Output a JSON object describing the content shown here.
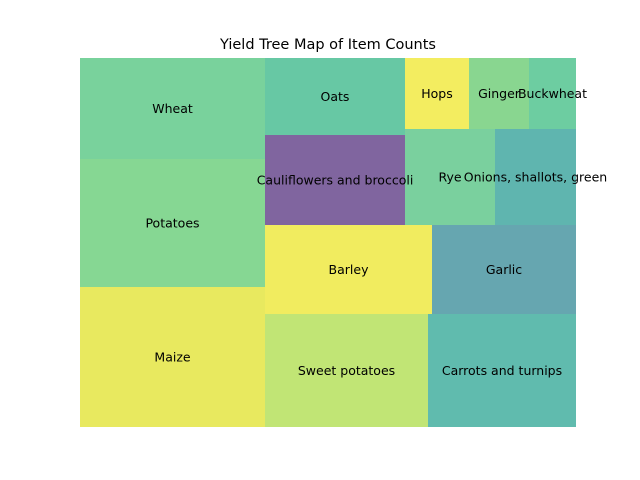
{
  "chart_data": {
    "type": "treemap",
    "title": "Yield Tree Map of Item Counts",
    "items": [
      {
        "name": "Maize",
        "value": 47,
        "color": "#e8e95f"
      },
      {
        "name": "Potatoes",
        "value": 43,
        "color": "#86d793"
      },
      {
        "name": "Wheat",
        "value": 33,
        "color": "#79d29c"
      },
      {
        "name": "Sweet potatoes",
        "value": 32,
        "color": "#c1e575"
      },
      {
        "name": "Barley",
        "value": 30,
        "color": "#f1ec5f"
      },
      {
        "name": "Cauliflowers and broccoli",
        "value": 23,
        "color": "#80659f"
      },
      {
        "name": "Oats",
        "value": 19,
        "color": "#67c8a4"
      },
      {
        "name": "Carrots and turnips",
        "value": 27,
        "color": "#60bbae"
      },
      {
        "name": "Garlic",
        "value": 23,
        "color": "#66a6b0"
      },
      {
        "name": "Rye",
        "value": 9,
        "color": "#7ad09e"
      },
      {
        "name": "Onions, shallots, green",
        "value": 8,
        "color": "#5fb5af"
      },
      {
        "name": "Hops",
        "value": 4.3,
        "color": "#f3ed60"
      },
      {
        "name": "Ginger",
        "value": 3.6,
        "color": "#89d690"
      },
      {
        "name": "Buckwheat",
        "value": 2.1,
        "color": "#6dcda1"
      }
    ]
  }
}
